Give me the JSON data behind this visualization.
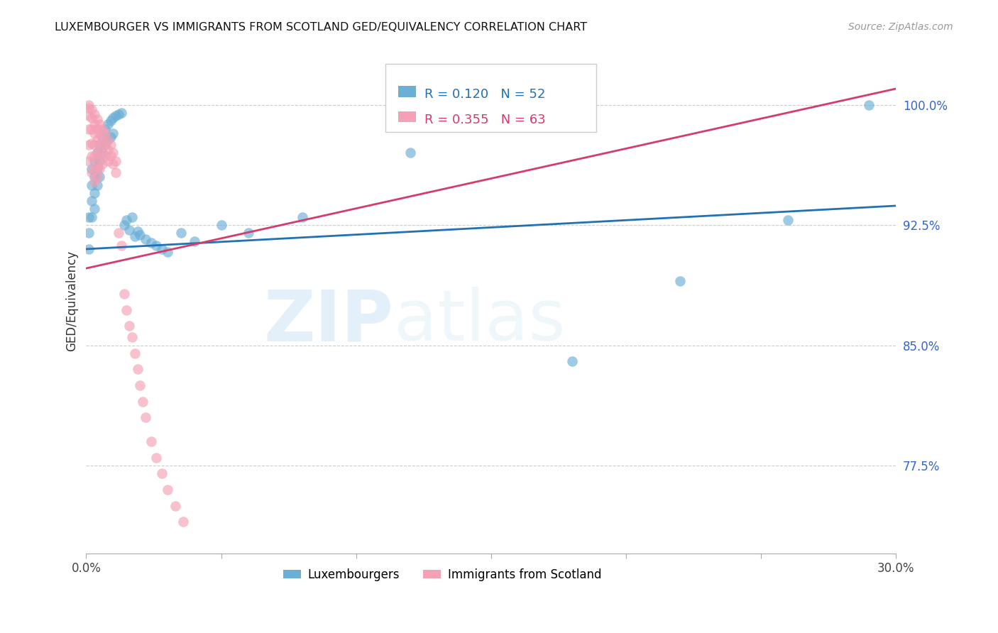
{
  "title": "LUXEMBOURGER VS IMMIGRANTS FROM SCOTLAND GED/EQUIVALENCY CORRELATION CHART",
  "source": "Source: ZipAtlas.com",
  "ylabel": "GED/Equivalency",
  "y_ticks": [
    0.775,
    0.85,
    0.925,
    1.0
  ],
  "y_tick_labels": [
    "77.5%",
    "85.0%",
    "92.5%",
    "100.0%"
  ],
  "x_min": 0.0,
  "x_max": 0.3,
  "y_min": 0.72,
  "y_max": 1.035,
  "legend_blue_label": "Luxembourgers",
  "legend_pink_label": "Immigrants from Scotland",
  "R_blue": 0.12,
  "N_blue": 52,
  "R_pink": 0.355,
  "N_pink": 63,
  "blue_color": "#6baed6",
  "pink_color": "#f4a0b5",
  "blue_line_color": "#2171b5",
  "pink_line_color": "#d63b6a",
  "watermark_zip": "ZIP",
  "watermark_atlas": "atlas",
  "blue_scatter_x": [
    0.001,
    0.001,
    0.001,
    0.002,
    0.002,
    0.002,
    0.002,
    0.003,
    0.003,
    0.003,
    0.003,
    0.004,
    0.004,
    0.004,
    0.005,
    0.005,
    0.005,
    0.006,
    0.006,
    0.007,
    0.007,
    0.008,
    0.008,
    0.009,
    0.009,
    0.01,
    0.01,
    0.011,
    0.012,
    0.013,
    0.014,
    0.015,
    0.016,
    0.017,
    0.018,
    0.019,
    0.02,
    0.022,
    0.024,
    0.026,
    0.028,
    0.03,
    0.035,
    0.04,
    0.05,
    0.06,
    0.08,
    0.12,
    0.18,
    0.22,
    0.26,
    0.29
  ],
  "blue_scatter_y": [
    0.93,
    0.92,
    0.91,
    0.96,
    0.95,
    0.94,
    0.93,
    0.965,
    0.955,
    0.945,
    0.935,
    0.97,
    0.96,
    0.95,
    0.975,
    0.965,
    0.955,
    0.98,
    0.97,
    0.985,
    0.975,
    0.988,
    0.978,
    0.99,
    0.98,
    0.992,
    0.982,
    0.993,
    0.994,
    0.995,
    0.925,
    0.928,
    0.922,
    0.93,
    0.918,
    0.921,
    0.919,
    0.916,
    0.914,
    0.912,
    0.91,
    0.908,
    0.92,
    0.915,
    0.925,
    0.92,
    0.93,
    0.97,
    0.84,
    0.89,
    0.928,
    1.0
  ],
  "pink_scatter_x": [
    0.001,
    0.001,
    0.001,
    0.001,
    0.001,
    0.001,
    0.002,
    0.002,
    0.002,
    0.002,
    0.002,
    0.002,
    0.003,
    0.003,
    0.003,
    0.003,
    0.003,
    0.003,
    0.003,
    0.004,
    0.004,
    0.004,
    0.004,
    0.004,
    0.004,
    0.005,
    0.005,
    0.005,
    0.005,
    0.005,
    0.006,
    0.006,
    0.006,
    0.006,
    0.007,
    0.007,
    0.007,
    0.008,
    0.008,
    0.008,
    0.009,
    0.009,
    0.01,
    0.01,
    0.011,
    0.011,
    0.012,
    0.013,
    0.014,
    0.015,
    0.016,
    0.017,
    0.018,
    0.019,
    0.02,
    0.021,
    0.022,
    0.024,
    0.026,
    0.028,
    0.03,
    0.033,
    0.036
  ],
  "pink_scatter_y": [
    1.0,
    0.998,
    0.993,
    0.985,
    0.975,
    0.965,
    0.997,
    0.992,
    0.985,
    0.976,
    0.968,
    0.958,
    0.994,
    0.988,
    0.982,
    0.975,
    0.968,
    0.96,
    0.952,
    0.991,
    0.985,
    0.978,
    0.97,
    0.962,
    0.955,
    0.988,
    0.982,
    0.975,
    0.967,
    0.96,
    0.985,
    0.978,
    0.97,
    0.963,
    0.982,
    0.975,
    0.968,
    0.978,
    0.972,
    0.965,
    0.975,
    0.968,
    0.97,
    0.963,
    0.965,
    0.958,
    0.92,
    0.912,
    0.882,
    0.872,
    0.862,
    0.855,
    0.845,
    0.835,
    0.825,
    0.815,
    0.805,
    0.79,
    0.78,
    0.77,
    0.76,
    0.75,
    0.74
  ]
}
